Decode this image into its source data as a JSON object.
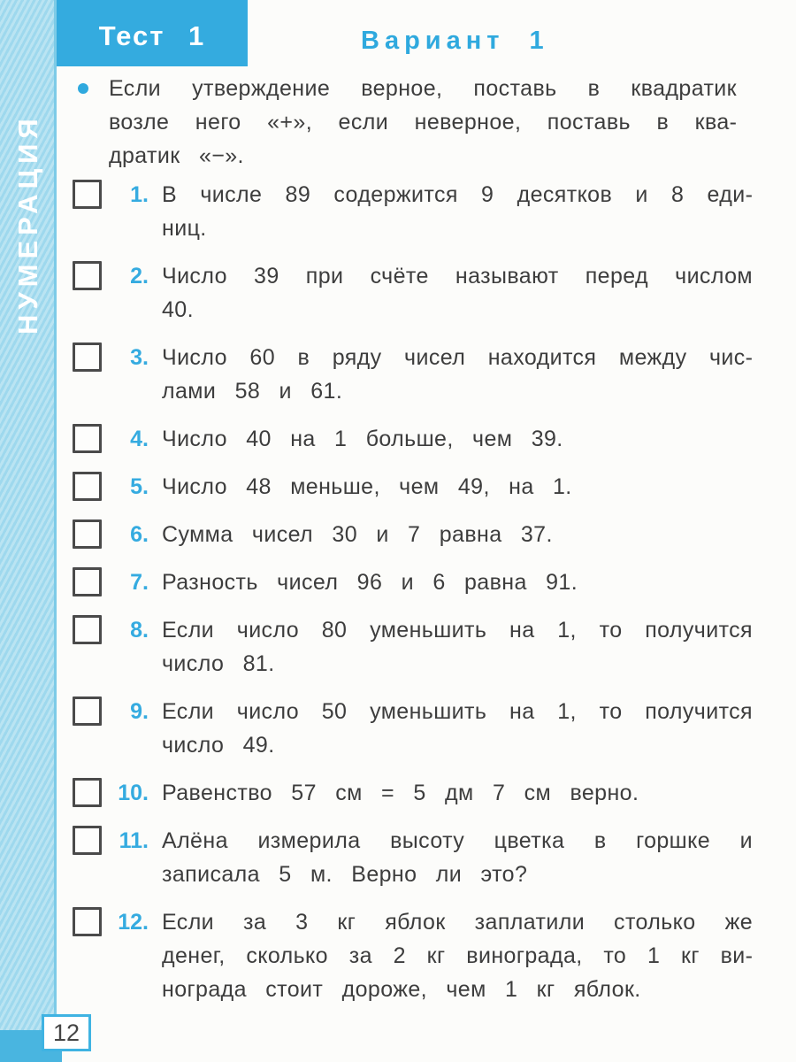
{
  "page": {
    "number": "12"
  },
  "sidebar": {
    "label": "НУМЕРАЦИЯ"
  },
  "header": {
    "test_label": "Тест 1",
    "variant_label": "Вариант 1"
  },
  "instruction": {
    "text": "Если утверждение верное, поставь в квадратик возле него «+», если неверное, поставь в ква­дратик «−»."
  },
  "items": [
    {
      "number": "1.",
      "text": "В числе 89 содержится 9 десятков и 8 еди­ниц."
    },
    {
      "number": "2.",
      "text": "Число 39 при счёте называют перед числом 40."
    },
    {
      "number": "3.",
      "text": "Число 60 в ряду чисел находится между чис­лами 58 и 61."
    },
    {
      "number": "4.",
      "text": "Число 40 на 1 больше, чем 39."
    },
    {
      "number": "5.",
      "text": "Число 48 меньше, чем 49, на 1."
    },
    {
      "number": "6.",
      "text": "Сумма чисел 30 и 7 равна 37."
    },
    {
      "number": "7.",
      "text": "Разность чисел 96 и 6 равна 91."
    },
    {
      "number": "8.",
      "text": "Если число 80 уменьшить на 1, то получится число 81."
    },
    {
      "number": "9.",
      "text": "Если число 50 уменьшить на 1, то получится число 49."
    },
    {
      "number": "10.",
      "text": "Равенство 57 см = 5 дм 7 см верно."
    },
    {
      "number": "11.",
      "text": "Алёна измерила высоту цветка в горшке и записала 5 м. Верно ли это?"
    },
    {
      "number": "12.",
      "text": "Если за 3 кг яблок заплатили столько же денег, сколько за 2 кг винограда, то 1 кг ви­нограда стоит дороже, чем 1 кг яблок."
    }
  ],
  "icons": {
    "bullet": "filled-circle"
  },
  "colors": {
    "accent_blue": "#2fa9de",
    "header_box_blue": "#34abdf",
    "sidebar_blue": "#a6dcef",
    "sidebar_bottom_blue": "#49b5e0",
    "body_text": "#3d3d3d",
    "checkbox_border": "#4a4a4a",
    "page_box_border": "#3fb3e2"
  }
}
